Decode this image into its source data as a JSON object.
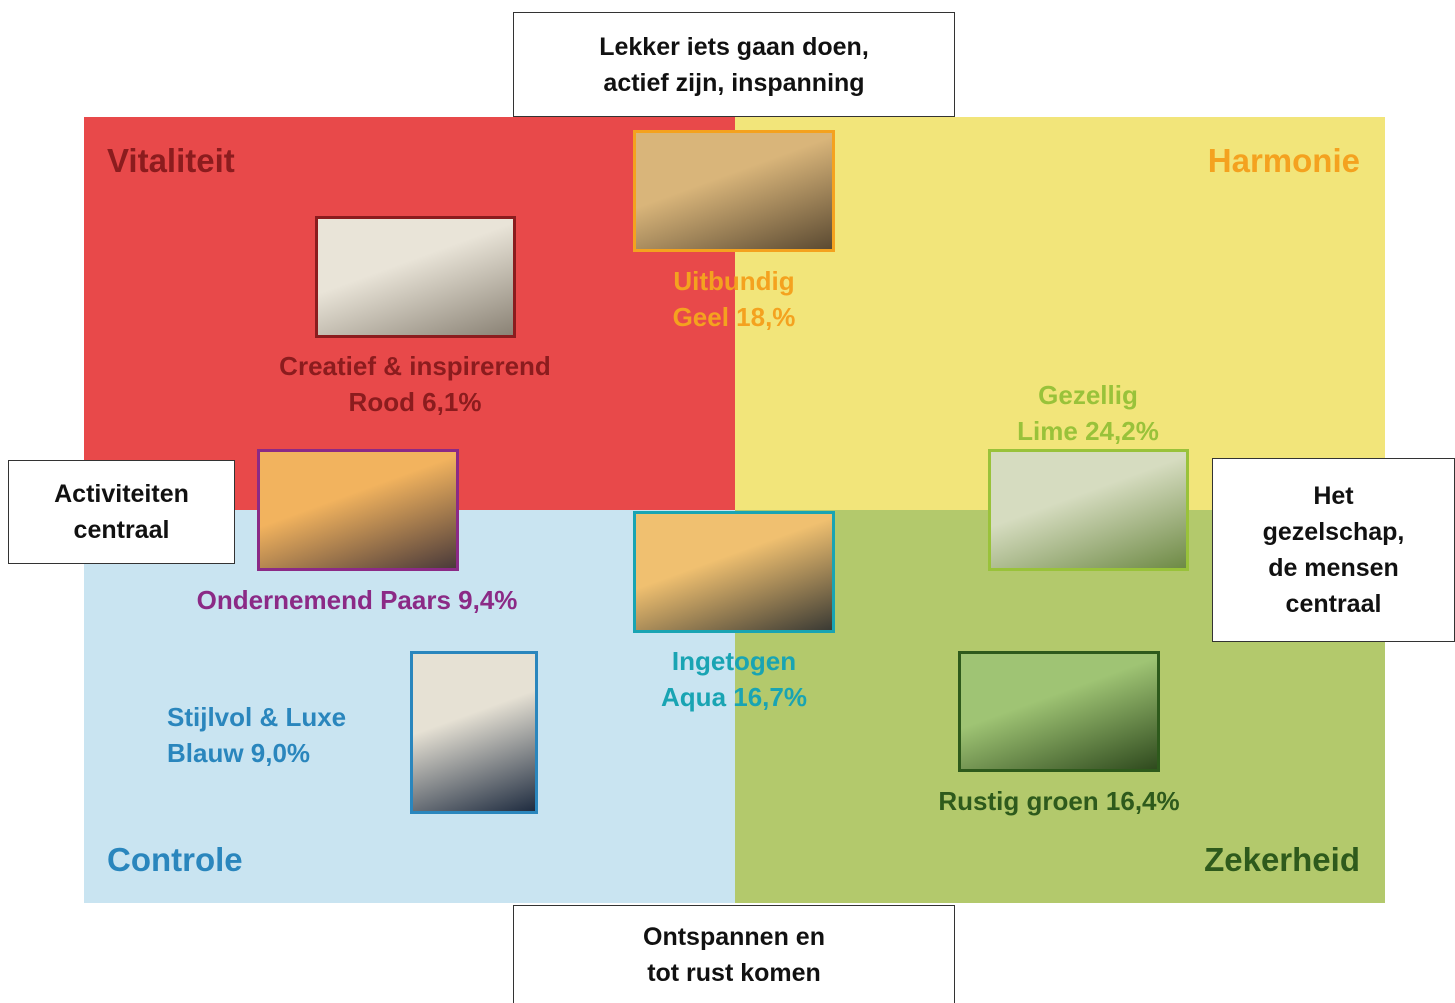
{
  "axes": {
    "top": [
      "Lekker iets gaan doen,",
      "actief zijn, inspanning"
    ],
    "bottom": [
      "Ontspannen en",
      "tot rust komen"
    ],
    "left": [
      "Activiteiten",
      "centraal"
    ],
    "right": [
      "Het",
      "gezelschap,",
      "de mensen",
      "centraal"
    ]
  },
  "quadrants": [
    "Vitaliteit",
    "Harmonie",
    "Controle",
    "Zekerheid"
  ],
  "segments": [
    {
      "lines": [
        "Creatief & inspirerend",
        "Rood 6,1%"
      ]
    },
    {
      "lines": [
        "Uitbundig",
        "Geel 18,%"
      ]
    },
    {
      "lines": [
        "Gezellig",
        "Lime 24,2%"
      ]
    },
    {
      "lines": [
        "Ondernemend Paars 9,4%"
      ]
    },
    {
      "lines": [
        "Ingetogen",
        "Aqua 16,7%"
      ]
    },
    {
      "lines": [
        "Stijlvol & Luxe",
        "Blauw 9,0%"
      ]
    },
    {
      "lines": [
        "Rustig groen 16,4%"
      ]
    }
  ]
}
